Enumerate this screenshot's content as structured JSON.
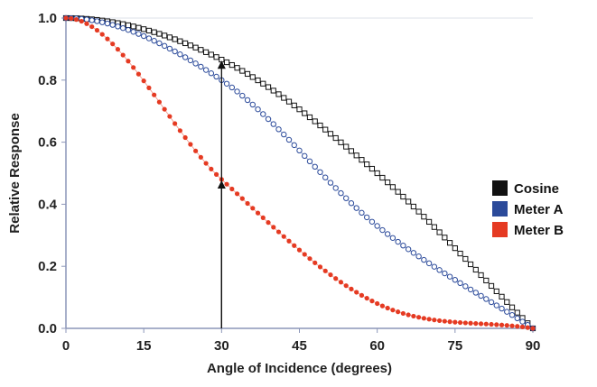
{
  "chart_data": {
    "type": "scatter",
    "title": "",
    "xlabel": "Angle of Incidence (degrees)",
    "ylabel": "Relative Response",
    "xlim": [
      0,
      90
    ],
    "ylim": [
      0,
      1.0
    ],
    "x_ticks": [
      0,
      15,
      30,
      45,
      60,
      75,
      90
    ],
    "x_tick_labels": [
      "0",
      "15",
      "30",
      "45",
      "60",
      "75",
      "90"
    ],
    "y_ticks": [
      0,
      0.2,
      0.4,
      0.6,
      0.8,
      1.0
    ],
    "y_tick_labels": [
      "0.0",
      "0.2",
      "0.4",
      "0.6",
      "0.8",
      "1.0"
    ],
    "grid": false,
    "legend_position": "right",
    "x": [
      0,
      30,
      60,
      90
    ],
    "series": [
      {
        "name": "Cosine",
        "color": "#111111",
        "marker": "square",
        "values": [
          1.0,
          0.866,
          0.5,
          0.0
        ]
      },
      {
        "name": "Meter A",
        "color": "#2b4a9a",
        "marker": "circle",
        "values": [
          1.0,
          0.8,
          0.33,
          0.0
        ]
      },
      {
        "name": "Meter B",
        "color": "#e53a22",
        "marker": "dot",
        "values": [
          1.0,
          0.48,
          0.08,
          0.0
        ]
      }
    ],
    "annotations": [
      {
        "type": "arrow",
        "x": 30,
        "from": 0,
        "to": 0.866
      },
      {
        "type": "arrow",
        "x": 30,
        "from": 0,
        "to": 0.48
      }
    ]
  }
}
